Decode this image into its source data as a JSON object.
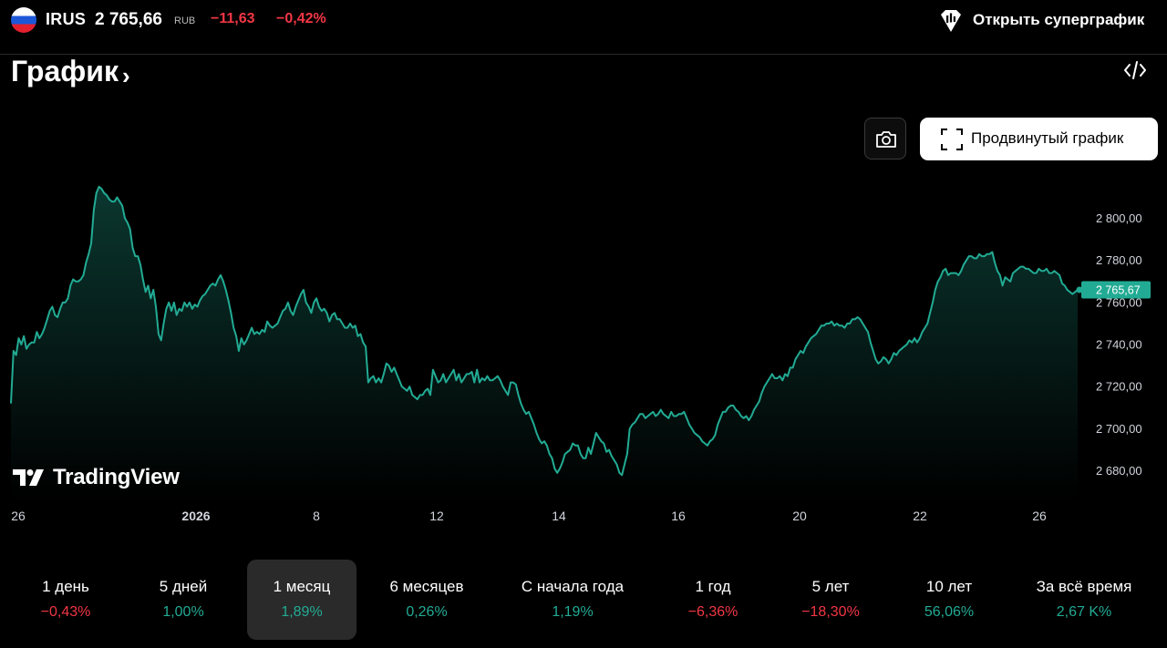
{
  "symbol": {
    "ticker": "IRUS",
    "price": "2 765,66",
    "currency": "RUB",
    "change": "−11,63",
    "change_pct": "−0,42%",
    "flag": "russia-flag-icon"
  },
  "header": {
    "supergraph_label": "Открыть суперграфик",
    "title": "График",
    "title_chevron": "›"
  },
  "toolbar": {
    "camera_icon": "camera-icon",
    "advanced_label": "Продвинутый график",
    "advanced_icon": "fullscreen-corners-icon",
    "embed_icon": "code-embed-icon"
  },
  "branding": {
    "logo_text": "TradingView"
  },
  "colors": {
    "line": "#22ab94",
    "negative": "#f23645",
    "positive": "#22ab94",
    "background": "#000000"
  },
  "chart_data": {
    "type": "area",
    "y_ticks": [
      "2 800,00",
      "2 780,00",
      "2 760,00",
      "2 740,00",
      "2 720,00",
      "2 700,00",
      "2 680,00"
    ],
    "y_tick_values": [
      2800,
      2780,
      2760,
      2740,
      2720,
      2700,
      2680
    ],
    "x_ticks": [
      "26",
      "2026",
      "8",
      "12",
      "14",
      "16",
      "20",
      "22",
      "26"
    ],
    "last_value_label": "2 765,67",
    "ylim": [
      2672,
      2818
    ],
    "values": [
      2712,
      2737,
      2735,
      2743,
      2740,
      2744,
      2738,
      2740,
      2741,
      2741,
      2746,
      2743,
      2745,
      2748,
      2752,
      2756,
      2758,
      2754,
      2753,
      2757,
      2760,
      2760,
      2762,
      2768,
      2771,
      2770,
      2770,
      2771,
      2773,
      2779,
      2783,
      2788,
      2804,
      2812,
      2815,
      2814,
      2812,
      2811,
      2809,
      2808,
      2808,
      2810,
      2808,
      2806,
      2800,
      2798,
      2795,
      2786,
      2782,
      2782,
      2778,
      2771,
      2765,
      2768,
      2762,
      2766,
      2758,
      2745,
      2742,
      2750,
      2757,
      2760,
      2756,
      2760,
      2754,
      2757,
      2756,
      2760,
      2758,
      2760,
      2757,
      2759,
      2758,
      2761,
      2763,
      2764,
      2766,
      2768,
      2769,
      2768,
      2771,
      2773,
      2770,
      2766,
      2761,
      2755,
      2748,
      2744,
      2737,
      2743,
      2740,
      2742,
      2745,
      2748,
      2745,
      2746,
      2745,
      2747,
      2746,
      2751,
      2749,
      2748,
      2749,
      2750,
      2753,
      2756,
      2757,
      2760,
      2756,
      2754,
      2758,
      2761,
      2764,
      2766,
      2760,
      2758,
      2755,
      2760,
      2762,
      2758,
      2756,
      2757,
      2755,
      2751,
      2754,
      2755,
      2752,
      2752,
      2750,
      2748,
      2748,
      2750,
      2748,
      2749,
      2744,
      2745,
      2741,
      2739,
      2722,
      2724,
      2725,
      2722,
      2724,
      2722,
      2726,
      2731,
      2730,
      2727,
      2729,
      2726,
      2723,
      2720,
      2719,
      2718,
      2720,
      2716,
      2715,
      2714,
      2716,
      2716,
      2718,
      2719,
      2716,
      2728,
      2725,
      2722,
      2723,
      2726,
      2722,
      2724,
      2726,
      2728,
      2723,
      2726,
      2722,
      2724,
      2726,
      2726,
      2727,
      2722,
      2728,
      2722,
      2724,
      2723,
      2725,
      2723,
      2723,
      2724,
      2725,
      2723,
      2720,
      2718,
      2716,
      2722,
      2722,
      2721,
      2716,
      2712,
      2709,
      2707,
      2708,
      2705,
      2702,
      2698,
      2695,
      2693,
      2694,
      2692,
      2688,
      2686,
      2681,
      2679,
      2681,
      2684,
      2688,
      2689,
      2690,
      2693,
      2692,
      2692,
      2688,
      2686,
      2686,
      2691,
      2688,
      2693,
      2698,
      2696,
      2694,
      2693,
      2689,
      2690,
      2687,
      2685,
      2683,
      2679,
      2678,
      2683,
      2688,
      2700,
      2702,
      2703,
      2705,
      2707,
      2707,
      2705,
      2706,
      2707,
      2708,
      2706,
      2707,
      2709,
      2707,
      2706,
      2705,
      2708,
      2706,
      2706,
      2707,
      2707,
      2708,
      2705,
      2702,
      2700,
      2698,
      2697,
      2696,
      2694,
      2693,
      2692,
      2694,
      2695,
      2697,
      2702,
      2705,
      2708,
      2708,
      2710,
      2711,
      2711,
      2709,
      2708,
      2706,
      2705,
      2706,
      2704,
      2706,
      2709,
      2711,
      2713,
      2717,
      2720,
      2722,
      2724,
      2726,
      2724,
      2724,
      2725,
      2723,
      2726,
      2725,
      2729,
      2729,
      2733,
      2735,
      2737,
      2736,
      2739,
      2741,
      2743,
      2744,
      2745,
      2747,
      2749,
      2749,
      2750,
      2750,
      2751,
      2749,
      2750,
      2749,
      2749,
      2748,
      2750,
      2750,
      2752,
      2752,
      2753,
      2752,
      2750,
      2748,
      2746,
      2741,
      2737,
      2733,
      2731,
      2732,
      2734,
      2733,
      2731,
      2733,
      2736,
      2735,
      2737,
      2738,
      2739,
      2740,
      2742,
      2741,
      2743,
      2741,
      2743,
      2746,
      2748,
      2750,
      2755,
      2760,
      2766,
      2770,
      2772,
      2775,
      2776,
      2773,
      2774,
      2774,
      2774,
      2773,
      2775,
      2778,
      2780,
      2782,
      2782,
      2781,
      2781,
      2783,
      2782,
      2782,
      2783,
      2783,
      2784,
      2779,
      2775,
      2773,
      2768,
      2772,
      2771,
      2770,
      2774,
      2775,
      2776,
      2777,
      2777,
      2776,
      2776,
      2775,
      2774,
      2774,
      2776,
      2775,
      2775,
      2776,
      2774,
      2774,
      2775,
      2774,
      2773,
      2769,
      2768,
      2766,
      2765,
      2764,
      2765,
      2766
    ]
  },
  "periods": [
    {
      "label": "1 день",
      "value": "−0,43%",
      "sign": "neg",
      "active": false
    },
    {
      "label": "5 дней",
      "value": "1,00%",
      "sign": "pos",
      "active": false
    },
    {
      "label": "1 месяц",
      "value": "1,89%",
      "sign": "pos",
      "active": true
    },
    {
      "label": "6 месяцев",
      "value": "0,26%",
      "sign": "pos",
      "active": false
    },
    {
      "label": "С начала года",
      "value": "1,19%",
      "sign": "pos",
      "active": false
    },
    {
      "label": "1 год",
      "value": "−6,36%",
      "sign": "neg",
      "active": false
    },
    {
      "label": "5 лет",
      "value": "−18,30%",
      "sign": "neg",
      "active": false
    },
    {
      "label": "10 лет",
      "value": "56,06%",
      "sign": "pos",
      "active": false
    },
    {
      "label": "За всё время",
      "value": "2,67 K%",
      "sign": "pos",
      "active": false
    }
  ]
}
